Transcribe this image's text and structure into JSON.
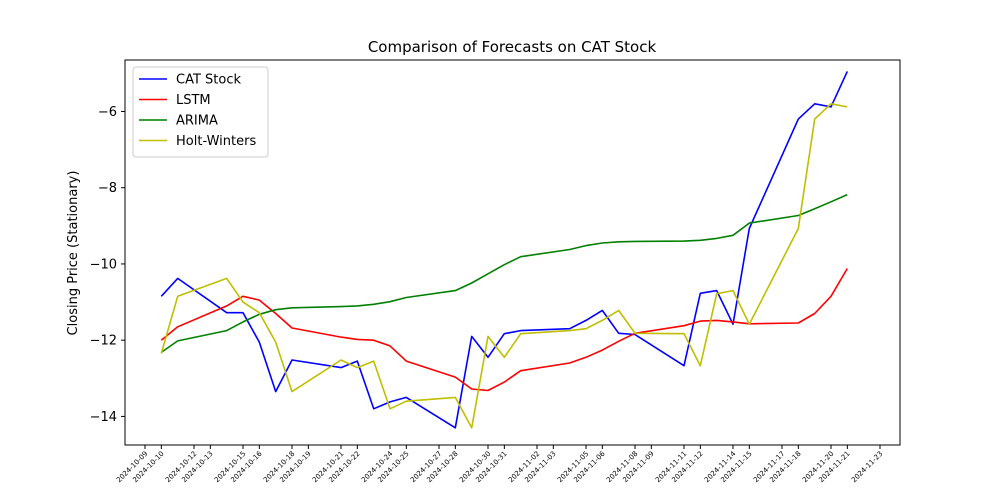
{
  "chart_data": {
    "type": "line",
    "title": "Comparison of Forecasts on CAT Stock",
    "xlabel": "",
    "ylabel": "Closing Price (Stationary)",
    "xlim": [
      "2024-10-09",
      "2024-11-23"
    ],
    "ylim": [
      -14.75,
      -4.65
    ],
    "yticks": [
      -14,
      -12,
      -10,
      -8,
      -6
    ],
    "xticks": [
      "2024-10-09",
      "2024-10-10",
      "2024-10-12",
      "2024-10-13",
      "2024-10-15",
      "2024-10-16",
      "2024-10-18",
      "2024-10-19",
      "2024-10-21",
      "2024-10-22",
      "2024-10-24",
      "2024-10-25",
      "2024-10-27",
      "2024-10-28",
      "2024-10-30",
      "2024-10-31",
      "2024-11-02",
      "2024-11-03",
      "2024-11-05",
      "2024-11-06",
      "2024-11-08",
      "2024-11-09",
      "2024-11-11",
      "2024-11-12",
      "2024-11-14",
      "2024-11-15",
      "2024-11-17",
      "2024-11-18",
      "2024-11-20",
      "2024-11-21",
      "2024-11-23"
    ],
    "grid": false,
    "legend_position": "upper-left",
    "series": [
      {
        "name": "CAT Stock",
        "color": "#0000ff",
        "x": [
          "2024-10-10",
          "2024-10-11",
          "2024-10-14",
          "2024-10-15",
          "2024-10-16",
          "2024-10-17",
          "2024-10-18",
          "2024-10-21",
          "2024-10-22",
          "2024-10-23",
          "2024-10-24",
          "2024-10-25",
          "2024-10-28",
          "2024-10-29",
          "2024-10-30",
          "2024-10-31",
          "2024-11-01",
          "2024-11-04",
          "2024-11-05",
          "2024-11-06",
          "2024-11-07",
          "2024-11-08",
          "2024-11-11",
          "2024-11-12",
          "2024-11-13",
          "2024-11-14",
          "2024-11-15",
          "2024-11-18",
          "2024-11-19",
          "2024-11-20",
          "2024-11-21"
        ],
        "y": [
          -10.85,
          -10.38,
          -11.28,
          -11.28,
          -12.05,
          -13.35,
          -12.52,
          -12.72,
          -12.55,
          -13.8,
          -13.62,
          -13.5,
          -14.3,
          -11.9,
          -12.45,
          -11.83,
          -11.75,
          -11.7,
          -11.48,
          -11.22,
          -11.82,
          -11.85,
          -12.67,
          -10.77,
          -10.7,
          -11.58,
          -9.07,
          -6.2,
          -5.8,
          -5.88,
          -4.95
        ]
      },
      {
        "name": "LSTM",
        "color": "#ff0000",
        "x": [
          "2024-10-10",
          "2024-10-11",
          "2024-10-14",
          "2024-10-15",
          "2024-10-16",
          "2024-10-17",
          "2024-10-18",
          "2024-10-21",
          "2024-10-22",
          "2024-10-23",
          "2024-10-24",
          "2024-10-25",
          "2024-10-28",
          "2024-10-29",
          "2024-10-30",
          "2024-10-31",
          "2024-11-01",
          "2024-11-04",
          "2024-11-05",
          "2024-11-06",
          "2024-11-07",
          "2024-11-08",
          "2024-11-11",
          "2024-11-12",
          "2024-11-13",
          "2024-11-14",
          "2024-11-15",
          "2024-11-18",
          "2024-11-19",
          "2024-11-20",
          "2024-11-21"
        ],
        "y": [
          -12.0,
          -11.65,
          -11.1,
          -10.85,
          -10.95,
          -11.3,
          -11.68,
          -11.92,
          -11.98,
          -12.0,
          -12.15,
          -12.55,
          -12.97,
          -13.28,
          -13.32,
          -13.1,
          -12.8,
          -12.6,
          -12.45,
          -12.26,
          -12.03,
          -11.82,
          -11.62,
          -11.5,
          -11.48,
          -11.52,
          -11.57,
          -11.55,
          -11.3,
          -10.85,
          -10.12
        ]
      },
      {
        "name": "ARIMA",
        "color": "#008000",
        "x": [
          "2024-10-10",
          "2024-10-11",
          "2024-10-14",
          "2024-10-15",
          "2024-10-16",
          "2024-10-17",
          "2024-10-18",
          "2024-10-21",
          "2024-10-22",
          "2024-10-23",
          "2024-10-24",
          "2024-10-25",
          "2024-10-28",
          "2024-10-29",
          "2024-10-30",
          "2024-10-31",
          "2024-11-01",
          "2024-11-04",
          "2024-11-05",
          "2024-11-06",
          "2024-11-07",
          "2024-11-08",
          "2024-11-11",
          "2024-11-12",
          "2024-11-13",
          "2024-11-14",
          "2024-11-15",
          "2024-11-18",
          "2024-11-19",
          "2024-11-20",
          "2024-11-21"
        ],
        "y": [
          -12.32,
          -12.02,
          -11.75,
          -11.52,
          -11.32,
          -11.2,
          -11.15,
          -11.12,
          -11.1,
          -11.06,
          -10.99,
          -10.88,
          -10.7,
          -10.5,
          -10.26,
          -10.02,
          -9.81,
          -9.62,
          -9.52,
          -9.45,
          -9.42,
          -9.41,
          -9.4,
          -9.38,
          -9.33,
          -9.25,
          -8.93,
          -8.73,
          -8.55,
          -8.37,
          -8.18
        ]
      },
      {
        "name": "Holt-Winters",
        "color": "#bfbf00",
        "x": [
          "2024-10-10",
          "2024-10-11",
          "2024-10-14",
          "2024-10-15",
          "2024-10-16",
          "2024-10-17",
          "2024-10-18",
          "2024-10-21",
          "2024-10-22",
          "2024-10-23",
          "2024-10-24",
          "2024-10-25",
          "2024-10-28",
          "2024-10-29",
          "2024-10-30",
          "2024-10-31",
          "2024-11-01",
          "2024-11-04",
          "2024-11-05",
          "2024-11-06",
          "2024-11-07",
          "2024-11-08",
          "2024-11-11",
          "2024-11-12",
          "2024-11-13",
          "2024-11-14",
          "2024-11-15",
          "2024-11-18",
          "2024-11-19",
          "2024-11-20",
          "2024-11-21"
        ],
        "y": [
          -12.35,
          -10.85,
          -10.38,
          -11.0,
          -11.28,
          -12.05,
          -13.35,
          -12.52,
          -12.72,
          -12.55,
          -13.8,
          -13.6,
          -13.5,
          -14.3,
          -11.9,
          -12.45,
          -11.83,
          -11.75,
          -11.7,
          -11.48,
          -11.22,
          -11.82,
          -11.83,
          -12.67,
          -10.78,
          -10.7,
          -11.58,
          -9.07,
          -6.2,
          -5.8,
          -5.88
        ]
      }
    ]
  }
}
